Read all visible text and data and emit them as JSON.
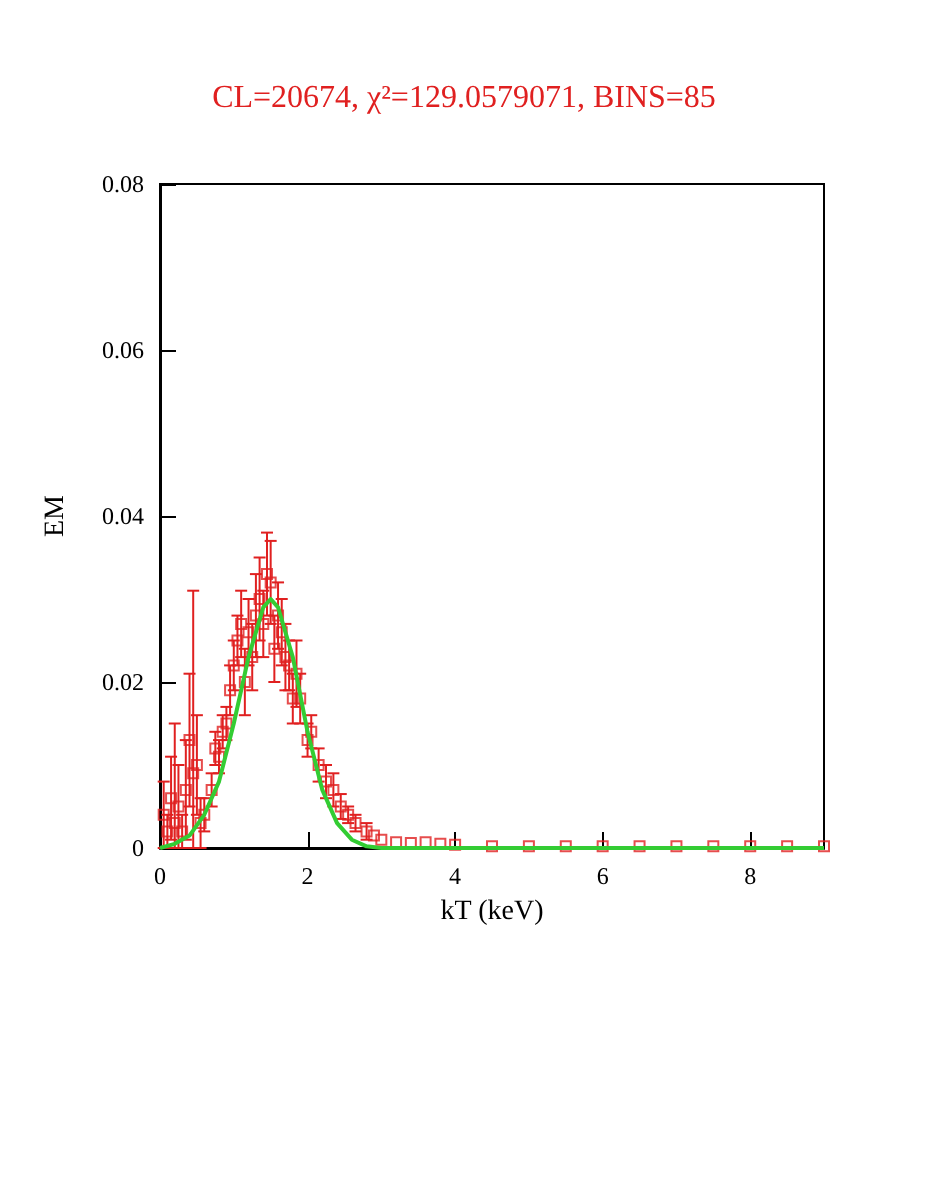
{
  "chart_data": {
    "type": "scatter",
    "title": "CL=20674, χ²=129.0579071, BINS=85",
    "xlabel": "kT (keV)",
    "ylabel": "EM",
    "xlim": [
      0,
      9
    ],
    "xticks": [
      0,
      2,
      4,
      6,
      8
    ],
    "ylim": [
      0,
      0.08
    ],
    "yticks": [
      0,
      0.02,
      0.04,
      0.06,
      0.08
    ],
    "grid": false,
    "marker": "square",
    "series": [
      {
        "color": "#e02020",
        "x": [
          0.05,
          0.1,
          0.15,
          0.2,
          0.25,
          0.3,
          0.35,
          0.4,
          0.45,
          0.5,
          0.55,
          0.6,
          0.7,
          0.75,
          0.8,
          0.85,
          0.9,
          0.95,
          1.0,
          1.05,
          1.1,
          1.15,
          1.2,
          1.25,
          1.3,
          1.35,
          1.4,
          1.45,
          1.5,
          1.55,
          1.6,
          1.65,
          1.7,
          1.75,
          1.8,
          1.85,
          1.9,
          2.0,
          2.05,
          2.15,
          2.25,
          2.35,
          2.45,
          2.55,
          2.65,
          2.8,
          2.9,
          3.0,
          3.2,
          3.4,
          3.6,
          3.8,
          4.0,
          4.5,
          5.0,
          5.5,
          6.0,
          6.5,
          7.0,
          7.5,
          8.0,
          8.5,
          9.0
        ],
        "values": [
          0.004,
          0.002,
          0.006,
          0.003,
          0.005,
          0.002,
          0.007,
          0.013,
          0.009,
          0.01,
          0.003,
          0.004,
          0.007,
          0.012,
          0.011,
          0.014,
          0.015,
          0.019,
          0.022,
          0.025,
          0.027,
          0.02,
          0.026,
          0.023,
          0.028,
          0.03,
          0.027,
          0.033,
          0.032,
          0.024,
          0.028,
          0.026,
          0.023,
          0.022,
          0.018,
          0.021,
          0.018,
          0.013,
          0.014,
          0.01,
          0.008,
          0.007,
          0.005,
          0.004,
          0.003,
          0.002,
          0.0015,
          0.001,
          0.0007,
          0.0006,
          0.0007,
          0.0005,
          0.0004,
          0.0002,
          0.0002,
          0.0002,
          0.0002,
          0.0002,
          0.0002,
          0.0002,
          0.0002,
          0.0002,
          0.0002
        ],
        "errors": [
          0.004,
          0.002,
          0.005,
          [
            0,
            0.015
          ],
          0.005,
          0.002,
          0.006,
          0.008,
          [
            0,
            0.031
          ],
          0.006,
          0.003,
          0.002,
          0.002,
          0.002,
          0.002,
          0.002,
          0.002,
          0.003,
          0.003,
          0.003,
          0.004,
          0.004,
          0.004,
          0.004,
          0.005,
          0.005,
          0.004,
          0.005,
          0.005,
          0.004,
          0.004,
          0.004,
          0.004,
          0.003,
          0.003,
          0.004,
          0.003,
          0.002,
          0.002,
          0.002,
          0.002,
          0.002,
          0.0015,
          0.001,
          0.001,
          0.001,
          null,
          null,
          null,
          null,
          null,
          null,
          null,
          null,
          null,
          null,
          null,
          null,
          null,
          null,
          null,
          null,
          null
        ]
      },
      {
        "type": "line",
        "color": "#33cc33",
        "marker": "none",
        "x": [
          0,
          0.2,
          0.4,
          0.6,
          0.8,
          1.0,
          1.2,
          1.4,
          1.5,
          1.6,
          1.8,
          2.0,
          2.2,
          2.4,
          2.6,
          2.8,
          3.0,
          9.0
        ],
        "values": [
          0,
          0.0005,
          0.0015,
          0.004,
          0.008,
          0.015,
          0.023,
          0.029,
          0.03,
          0.029,
          0.023,
          0.014,
          0.007,
          0.003,
          0.001,
          0.0002,
          0,
          0
        ]
      }
    ]
  }
}
